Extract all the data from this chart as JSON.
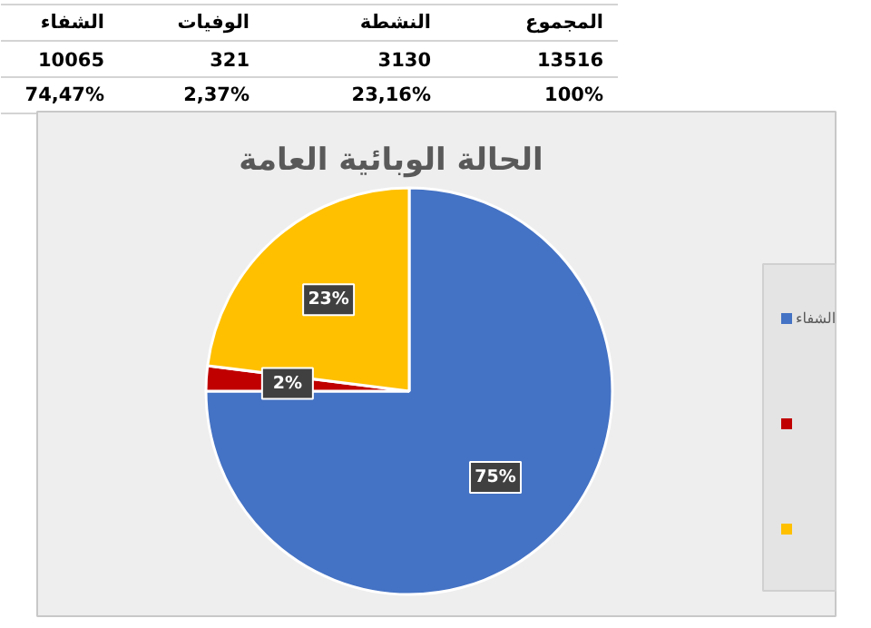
{
  "chart_data": {
    "type": "pie",
    "title": "الحالة الوبائية العامة",
    "categories": [
      "الشفاء",
      null,
      null
    ],
    "values": [
      75,
      2,
      23
    ],
    "colors": [
      "#4472c4",
      "#c00000",
      "#ffc000"
    ],
    "value_labels": [
      "75%",
      "2%",
      "23%"
    ],
    "legend": "right",
    "annotations": [
      "الشفاء",
      "الوفيات",
      "النشطة",
      "المجموع",
      "10065",
      "321",
      "3130",
      "13516",
      "74,47%",
      "2,37%",
      "23,16%",
      "100%"
    ]
  }
}
